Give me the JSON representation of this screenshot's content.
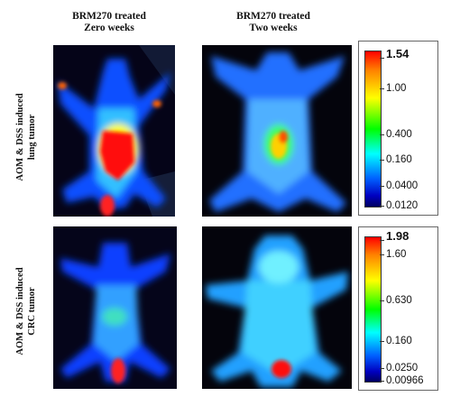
{
  "columns": [
    {
      "line1": "BRM270 treated",
      "line2": "Zero weeks"
    },
    {
      "line1": "BRM270 treated",
      "line2": "Two weeks"
    }
  ],
  "rows": [
    {
      "line1": "AOM  & DSS induced",
      "line2": "lung tumor"
    },
    {
      "line1": "AOM  & DSS induced",
      "line2": "CRC tumor"
    }
  ],
  "colorbars": [
    {
      "ticks": [
        "1.54",
        "1.00",
        "0.400",
        "0.160",
        "0.0400",
        "0.0120"
      ]
    },
    {
      "ticks": [
        "1.98",
        "1.60",
        "0.630",
        "0.160",
        "0.0250",
        "0.00966"
      ]
    }
  ],
  "colors": {
    "colormap": [
      "#ff0000",
      "#ff8000",
      "#ffff00",
      "#00ff00",
      "#00ffff",
      "#0060ff",
      "#0000c0",
      "#000060"
    ],
    "background": "#040410"
  }
}
